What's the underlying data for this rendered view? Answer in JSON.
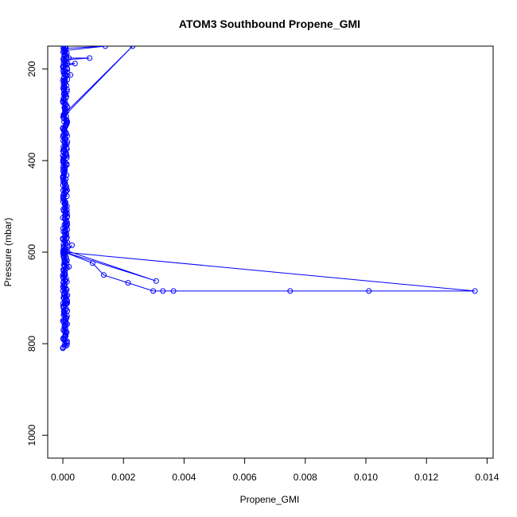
{
  "chart_data": {
    "type": "line",
    "title": "ATOM3 Southbound Propene_GMI",
    "xlabel": "Propene_GMI",
    "ylabel": "Pressure (mbar)",
    "xlim": [
      -0.0005,
      0.0142
    ],
    "ylim": [
      1050,
      150
    ],
    "y_reversed": true,
    "grid": false,
    "xticks": [
      0.0,
      0.002,
      0.004,
      0.006,
      0.008,
      0.01,
      0.012,
      0.014
    ],
    "xtick_labels": [
      "0.000",
      "0.002",
      "0.004",
      "0.006",
      "0.008",
      "0.010",
      "0.012",
      "0.014"
    ],
    "yticks": [
      200,
      400,
      600,
      800,
      1000
    ],
    "ytick_labels": [
      "200",
      "400",
      "600",
      "800",
      "1000"
    ],
    "series": [
      {
        "color": "#0000ff",
        "marker": "open-circle",
        "points": [
          [
            0.0,
            810
          ],
          [
            1e-05,
            790
          ],
          [
            2e-05,
            770
          ],
          [
            0.0,
            750
          ],
          [
            3e-05,
            730
          ],
          [
            1e-05,
            712
          ],
          [
            2e-05,
            700
          ],
          [
            0.0001,
            712
          ],
          [
            0.00015,
            694
          ],
          [
            5e-05,
            680
          ],
          [
            2e-05,
            665
          ],
          [
            0.0,
            650
          ],
          [
            3e-05,
            640
          ],
          [
            0.0002,
            632
          ],
          [
            5e-05,
            620
          ],
          [
            2e-05,
            610
          ],
          [
            0.0003,
            585
          ],
          [
            2e-05,
            600
          ],
          [
            0.0136,
            685
          ],
          [
            0.0101,
            685
          ],
          [
            0.0075,
            685
          ],
          [
            0.00365,
            685
          ],
          [
            0.0033,
            685
          ],
          [
            0.00298,
            685
          ],
          [
            0.00215,
            667
          ],
          [
            0.00135,
            650
          ],
          [
            0.00098,
            624
          ],
          [
            5e-05,
            600
          ],
          [
            0.00308,
            663
          ],
          [
            4e-05,
            595
          ],
          [
            0.0,
            570
          ],
          [
            2e-05,
            555
          ],
          [
            5e-05,
            540
          ],
          [
            0.0,
            525
          ],
          [
            3e-05,
            510
          ],
          [
            8e-05,
            495
          ],
          [
            2e-05,
            480
          ],
          [
            1e-05,
            465
          ],
          [
            6e-05,
            450
          ],
          [
            0.0,
            435
          ],
          [
            4e-05,
            420
          ],
          [
            2e-05,
            405
          ],
          [
            0.0,
            390
          ],
          [
            3e-05,
            375
          ],
          [
            5e-05,
            360
          ],
          [
            1e-05,
            345
          ],
          [
            0.0,
            330
          ],
          [
            4e-05,
            315
          ],
          [
            2e-05,
            300
          ],
          [
            0.0023,
            150
          ],
          [
            1e-05,
            305
          ],
          [
            5e-05,
            285
          ],
          [
            0.0,
            270
          ],
          [
            3e-05,
            255
          ],
          [
            2e-05,
            240
          ],
          [
            0.0,
            225
          ],
          [
            0.00025,
            213
          ],
          [
            2e-05,
            205
          ],
          [
            0.0,
            195
          ],
          [
            0.0004,
            188
          ],
          [
            0.00015,
            188
          ],
          [
            2e-05,
            180
          ],
          [
            0.00088,
            176
          ],
          [
            0.0002,
            176
          ],
          [
            5e-05,
            168
          ],
          [
            3e-05,
            160
          ],
          [
            0.0014,
            150
          ],
          [
            0.0001,
            155
          ],
          [
            2e-05,
            150
          ]
        ],
        "dense_band": {
          "x_range": [
            0.0,
            0.00015
          ],
          "p_range": [
            150,
            810
          ]
        }
      }
    ]
  }
}
